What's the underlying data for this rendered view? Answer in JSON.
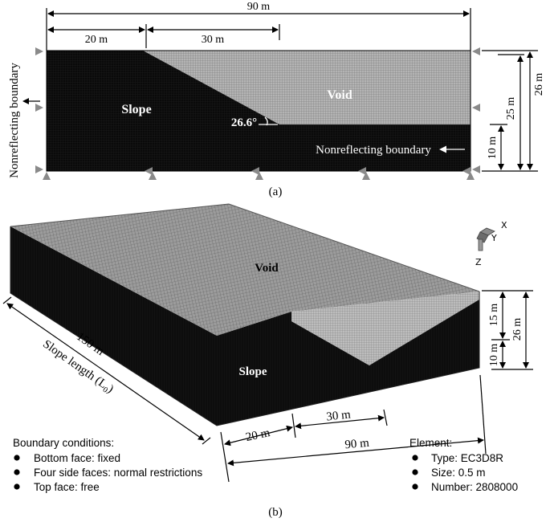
{
  "colors": {
    "slope": "#0b0b0b",
    "void": "#a8a8a8",
    "mesh_dark": "#2c2c2c",
    "mesh_light": "#d2d2d2",
    "support": "#909090"
  },
  "panel_a": {
    "caption": "(a)",
    "dims": {
      "total_width": "90 m",
      "crest_width": "20 m",
      "slope_width": "30 m",
      "height_top": "26 m",
      "height_mid": "25 m",
      "height_base": "10 m"
    },
    "labels": {
      "slope": "Slope",
      "void": "Void",
      "angle": "26.6°",
      "boundary_left": "Nonreflecting boundary",
      "boundary_bottom": "Nonreflecting boundary"
    }
  },
  "panel_b": {
    "caption": "(b)",
    "labels": {
      "void": "Void",
      "slope": "Slope"
    },
    "axes": {
      "x": "X",
      "y": "Y",
      "z": "Z"
    },
    "dims": {
      "length": "150 m",
      "length_label": "Slope length (L",
      "length_sub": "0",
      "length_close": ")",
      "crest_width": "20 m",
      "slope_width": "30 m",
      "total_width": "90 m",
      "height_upper": "15 m",
      "height_lower": "10 m",
      "height_total": "26 m"
    },
    "boundary_conditions": {
      "title": "Boundary conditions:",
      "items": [
        "Bottom face: fixed",
        "Four side faces: normal restrictions",
        "Top face: free"
      ]
    },
    "element": {
      "title": "Element:",
      "items": [
        "Type: EC3D8R",
        "Size: 0.5 m",
        "Number: 2808000"
      ]
    }
  }
}
